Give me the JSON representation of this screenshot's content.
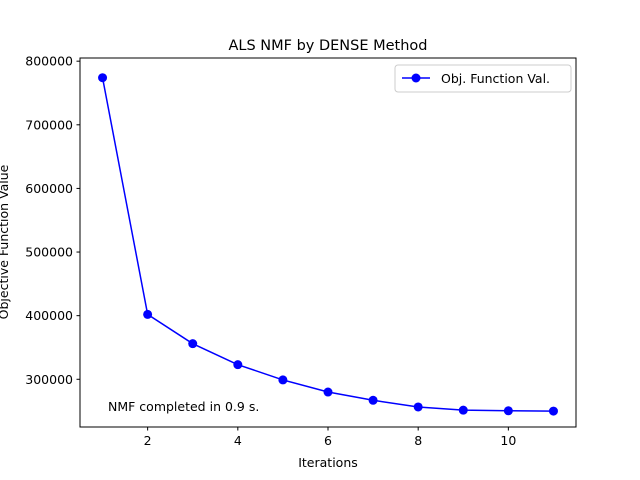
{
  "chart_data": {
    "type": "line",
    "title": "ALS NMF by DENSE Method",
    "xlabel": "Iterations",
    "ylabel": "Objective Function Value",
    "x": [
      1,
      2,
      3,
      4,
      5,
      6,
      7,
      8,
      9,
      10,
      11
    ],
    "series": [
      {
        "name": "Obj. Function Val.",
        "color": "#0000ff",
        "marker": "circle",
        "values": [
          774000,
          402000,
          356000,
          323000,
          299000,
          280000,
          267000,
          256500,
          251500,
          250500,
          250000
        ]
      }
    ],
    "xlim": [
      0.5,
      11.5
    ],
    "ylim": [
      225000,
      805000
    ],
    "xticks": [
      2,
      4,
      6,
      8,
      10
    ],
    "yticks": [
      300000,
      400000,
      500000,
      600000,
      700000,
      800000
    ],
    "grid": false,
    "legend_position": "top-right",
    "annotation": "NMF completed in 0.9 s."
  }
}
